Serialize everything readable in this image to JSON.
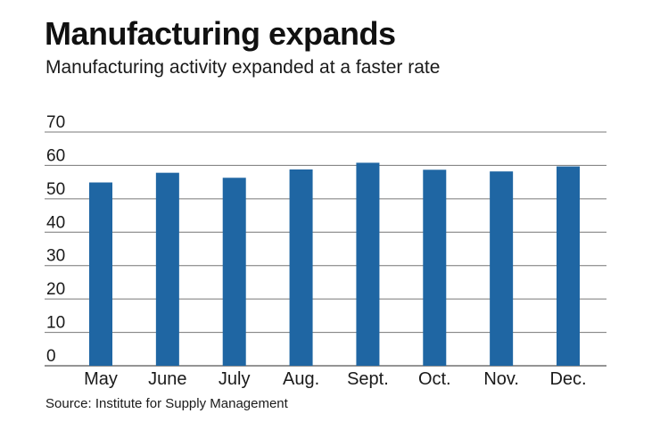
{
  "header": {
    "title": "Manufacturing expands",
    "subtitle": "Manufacturing activity expanded at a faster rate"
  },
  "footer": {
    "source": "Source: Institute for Supply Management"
  },
  "colors": {
    "bar": "#1f66a3",
    "gridline": "#777777",
    "axis": "#555555"
  },
  "chart_data": {
    "type": "bar",
    "title": "Manufacturing expands",
    "subtitle": "Manufacturing activity expanded at a faster rate",
    "xlabel": "",
    "ylabel": "",
    "categories": [
      "May",
      "June",
      "July",
      "Aug.",
      "Sept.",
      "Oct.",
      "Nov.",
      "Dec."
    ],
    "values": [
      54.9,
      57.8,
      56.3,
      58.8,
      60.8,
      58.7,
      58.2,
      59.7
    ],
    "ylim": [
      0,
      70
    ],
    "yticks": [
      0,
      10,
      20,
      30,
      40,
      50,
      60,
      70
    ],
    "grid": true,
    "legend": "none"
  }
}
